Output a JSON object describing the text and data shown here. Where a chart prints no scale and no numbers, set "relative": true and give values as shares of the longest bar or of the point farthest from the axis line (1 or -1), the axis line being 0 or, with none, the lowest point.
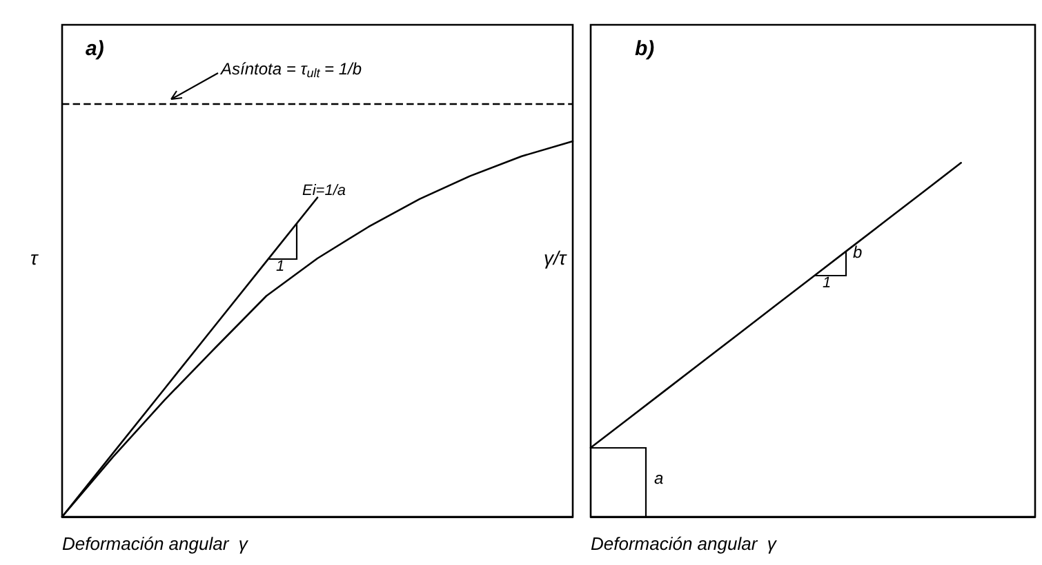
{
  "chart_data": [
    {
      "type": "line",
      "relative": true,
      "xlabel": "Deformación angular  γ",
      "ylabel": "τ",
      "categories": [
        null,
        null,
        null,
        null,
        null,
        null,
        null,
        null,
        null,
        null,
        null
      ],
      "series": [
        {
          "color": "#000000",
          "values": [
            0,
            0.16,
            0.31,
            0.45,
            0.588,
            0.688,
            0.772,
            0.846,
            0.908,
            0.96,
            1
          ]
        },
        {
          "color": "#000000",
          "values": [
            0,
            0.17,
            0.34,
            0.51,
            0.68,
            0.85,
            null,
            null,
            null,
            null,
            null
          ]
        }
      ],
      "ref_lines": [
        {
          "axis": "y",
          "value": 1.1,
          "color": "#000000",
          "line_style": "dashed"
        }
      ],
      "annotations": [
        "a)",
        "Asíntota = τ$_{ult}$ = 1/b",
        "Ei=1/a",
        "1"
      ],
      "marker": "none",
      "line_style": "solid",
      "grid": false
    },
    {
      "type": "line",
      "relative": true,
      "xlabel": "Deformación angular  γ",
      "ylabel": "γ/τ",
      "categories": [
        null,
        null,
        null,
        null,
        null,
        null,
        null,
        null,
        null,
        null,
        null,
        null,
        null
      ],
      "series": [
        {
          "color": "#000000",
          "values": [
            0.195,
            0.2755,
            0.356,
            0.4365,
            0.517,
            0.5975,
            0.678,
            0.7585,
            0.839,
            0.9195,
            1,
            null,
            null
          ]
        }
      ],
      "annotations": [
        "b)",
        "b",
        "1",
        "a"
      ],
      "marker": "none",
      "line_style": "solid",
      "grid": false
    }
  ]
}
